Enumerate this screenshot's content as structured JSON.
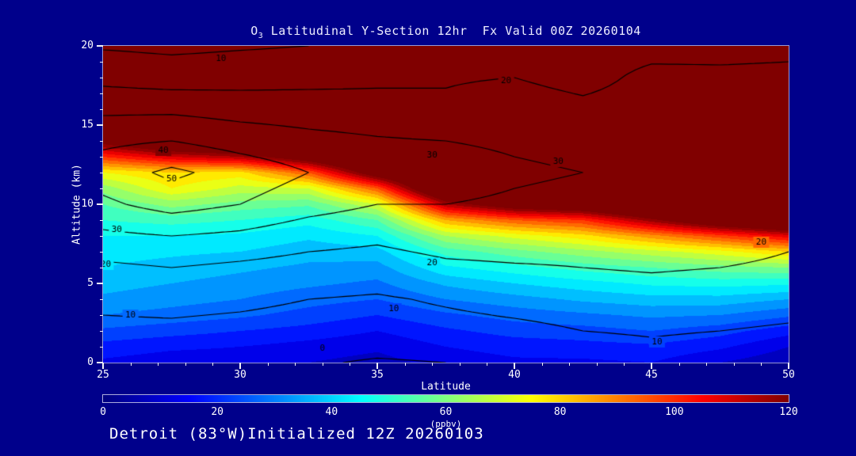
{
  "colors": {
    "background": "#00008B",
    "text": "#FFFFFF",
    "title_text": "#EEEEFF",
    "contour_line": "#000000",
    "colormap_low": "#000080",
    "colormap_high": "#800000"
  },
  "title": {
    "prefix": "O",
    "sub": "3",
    "rest": " Latitudinal Y-Section 12hr  Fx Valid 00Z 20260104"
  },
  "caption": "Detroit (83°W)Initialized 12Z 20260103",
  "axes": {
    "x": {
      "label": "Latitude",
      "min": 25,
      "max": 50,
      "ticks": [
        25,
        30,
        35,
        40,
        45,
        50
      ]
    },
    "y": {
      "label": "Altitude (km)",
      "min": 0,
      "max": 20,
      "ticks": [
        0,
        5,
        10,
        15,
        20
      ]
    }
  },
  "colorbar": {
    "min": 0,
    "max": 120,
    "ticks": [
      0,
      20,
      40,
      60,
      80,
      100,
      120
    ],
    "units": "(ppbv)"
  },
  "chart_data": {
    "type": "heatmap",
    "title": "O3 Latitudinal Y-Section 12hr  Fx Valid 00Z 20260104",
    "xlabel": "Latitude",
    "ylabel": "Altitude (km)",
    "fill_field": "ozone mixing ratio",
    "fill_units": "ppbv",
    "fill_range": [
      0,
      120
    ],
    "fill_band_interval": 5,
    "x_lats": [
      25,
      27.5,
      30,
      32.5,
      35,
      37.5,
      40,
      42.5,
      45,
      47.5,
      50
    ],
    "fill_alts_km": [
      0,
      1,
      2,
      3,
      4,
      5,
      6,
      7,
      8,
      9,
      10,
      11,
      12,
      13,
      14,
      15,
      16,
      17,
      18,
      19,
      20
    ],
    "fill_values_o3": [
      [
        14,
        12,
        12,
        10,
        8,
        12,
        14,
        14,
        15,
        10,
        6
      ],
      [
        18,
        16,
        15,
        13,
        11,
        15,
        17,
        18,
        19,
        16,
        10
      ],
      [
        24,
        22,
        20,
        18,
        15,
        19,
        22,
        23,
        25,
        22,
        17
      ],
      [
        30,
        28,
        26,
        23,
        20,
        24,
        27,
        29,
        31,
        30,
        26
      ],
      [
        34,
        32,
        30,
        27,
        25,
        30,
        33,
        36,
        38,
        38,
        35
      ],
      [
        37,
        35,
        33,
        31,
        29,
        36,
        40,
        43,
        46,
        47,
        46
      ],
      [
        40,
        38,
        36,
        34,
        33,
        44,
        48,
        52,
        55,
        58,
        60
      ],
      [
        42,
        41,
        40,
        37,
        38,
        52,
        58,
        63,
        68,
        73,
        80
      ],
      [
        45,
        45,
        44,
        41,
        45,
        65,
        72,
        78,
        88,
        98,
        108
      ],
      [
        50,
        52,
        50,
        47,
        55,
        85,
        95,
        100,
        118,
        135,
        145
      ],
      [
        55,
        62,
        58,
        56,
        70,
        115,
        130,
        135,
        148,
        150,
        150
      ],
      [
        62,
        75,
        68,
        70,
        95,
        145,
        150,
        150,
        150,
        150,
        150
      ],
      [
        75,
        80,
        78,
        95,
        130,
        150,
        150,
        150,
        150,
        150,
        150
      ],
      [
        100,
        110,
        115,
        130,
        150,
        150,
        150,
        150,
        150,
        150,
        150
      ],
      [
        125,
        140,
        145,
        150,
        150,
        150,
        150,
        150,
        150,
        150,
        150
      ],
      [
        150,
        150,
        150,
        150,
        150,
        150,
        150,
        150,
        150,
        150,
        150
      ],
      [
        150,
        150,
        150,
        150,
        150,
        150,
        150,
        150,
        150,
        150,
        150
      ],
      [
        150,
        150,
        150,
        150,
        150,
        150,
        150,
        150,
        150,
        150,
        150
      ],
      [
        150,
        150,
        150,
        150,
        150,
        150,
        150,
        150,
        150,
        150,
        150
      ],
      [
        150,
        150,
        150,
        150,
        150,
        150,
        150,
        150,
        150,
        150,
        150
      ],
      [
        150,
        150,
        150,
        150,
        150,
        150,
        150,
        150,
        150,
        150,
        150
      ]
    ],
    "line_levels": [
      0,
      10,
      20,
      30,
      40,
      50
    ],
    "line_alts_km": [
      0,
      2,
      4,
      6,
      8,
      10,
      12,
      14,
      16,
      18,
      20
    ],
    "line_values": [
      [
        5,
        4,
        3,
        1,
        -1,
        0,
        2,
        4,
        6,
        4,
        3
      ],
      [
        8,
        8,
        7,
        6,
        6,
        7,
        8,
        10,
        11,
        10,
        9
      ],
      [
        12,
        13,
        12,
        10,
        9,
        11,
        13,
        14,
        15,
        14,
        13
      ],
      [
        18,
        20,
        18,
        16,
        15,
        18,
        19,
        20,
        21,
        20,
        19
      ],
      [
        28,
        30,
        28,
        24,
        22,
        25,
        26,
        25,
        24,
        23,
        21
      ],
      [
        38,
        44,
        40,
        34,
        30,
        30,
        29,
        28,
        27,
        26,
        24
      ],
      [
        45,
        52,
        46,
        40,
        36,
        33,
        31,
        30,
        29,
        28,
        27
      ],
      [
        38,
        40,
        36,
        33,
        31,
        30,
        29,
        28,
        27,
        26,
        26
      ],
      [
        28,
        28,
        26,
        25,
        24,
        22,
        26,
        23,
        25,
        21,
        24
      ],
      [
        17,
        15,
        16,
        17,
        18,
        19,
        20,
        16,
        23,
        22,
        22
      ],
      [
        9,
        8,
        9,
        10,
        12,
        13,
        14,
        15,
        16,
        17,
        18
      ]
    ],
    "contour_labels": [
      {
        "value": 10,
        "lat": 29.3,
        "alt": 19.2
      },
      {
        "value": 20,
        "lat": 39.7,
        "alt": 17.8
      },
      {
        "value": 30,
        "lat": 37.0,
        "alt": 13.1
      },
      {
        "value": 30,
        "lat": 41.6,
        "alt": 12.7
      },
      {
        "value": 40,
        "lat": 27.2,
        "alt": 13.4
      },
      {
        "value": 50,
        "lat": 27.5,
        "alt": 11.6
      },
      {
        "value": 30,
        "lat": 25.5,
        "alt": 8.4
      },
      {
        "value": 20,
        "lat": 25.1,
        "alt": 6.2
      },
      {
        "value": 20,
        "lat": 37.0,
        "alt": 6.3
      },
      {
        "value": 10,
        "lat": 26.0,
        "alt": 3.0
      },
      {
        "value": 10,
        "lat": 35.6,
        "alt": 3.4
      },
      {
        "value": 0,
        "lat": 33.0,
        "alt": 0.9
      },
      {
        "value": 10,
        "lat": 45.2,
        "alt": 1.3
      },
      {
        "value": 20,
        "lat": 49.0,
        "alt": 7.6
      }
    ],
    "legend_position": "bottom-colorbar",
    "grid": false
  }
}
